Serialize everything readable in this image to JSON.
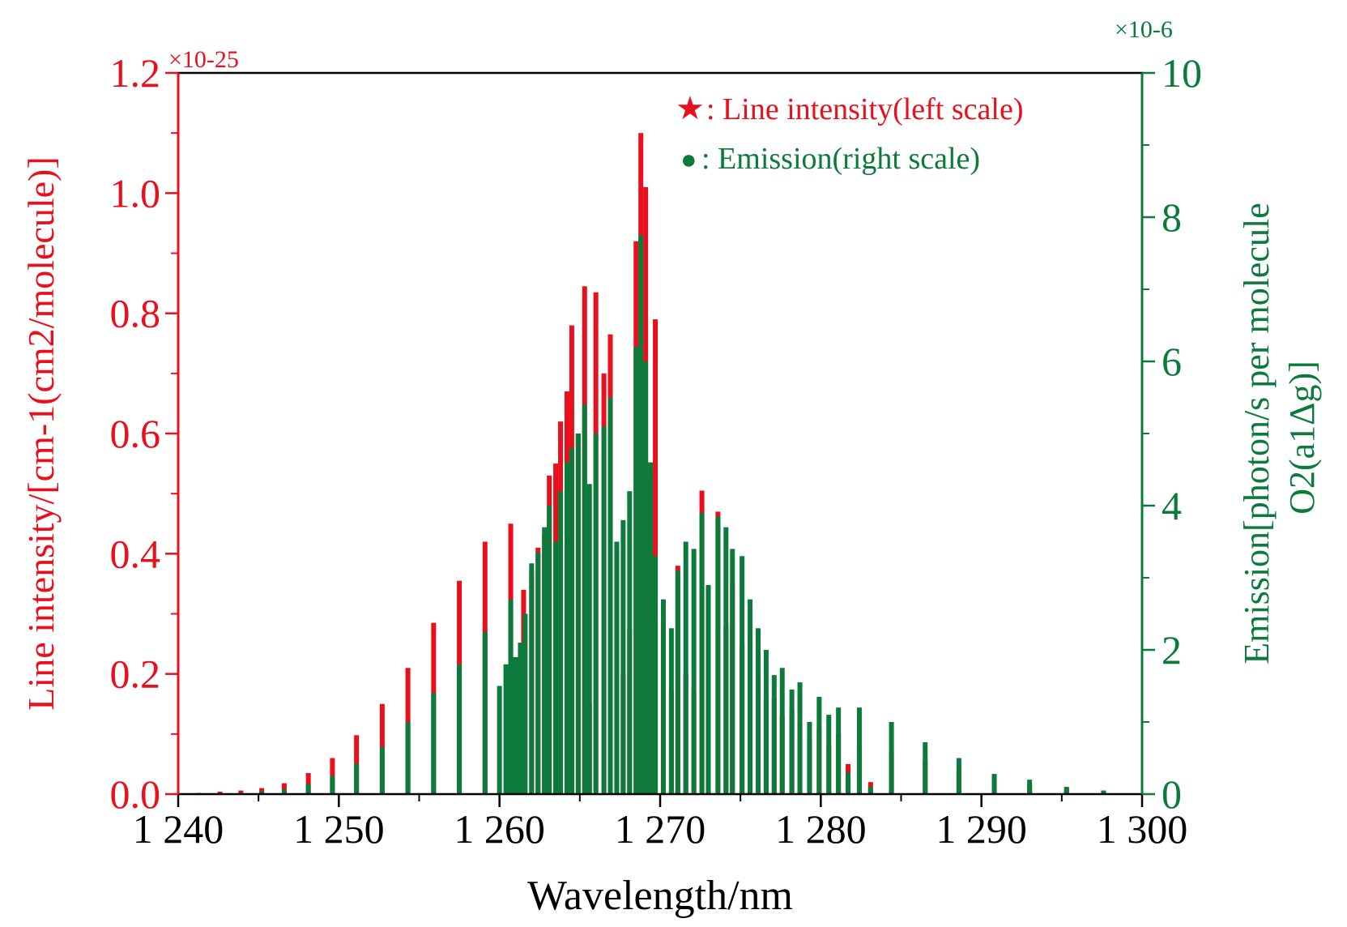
{
  "chart_data": {
    "type": "bar",
    "xlabel": "Wavelength/nm",
    "ylabel_left": "Line intensity/[cm-1(cm2/molecule)]",
    "ylabel_right_line1": "Emission[photon/s per molecule",
    "ylabel_right_line2": "O2(a1Δg)]",
    "left_multiplier": "×10-25",
    "right_multiplier": "×10-6",
    "xlim": [
      1240,
      1300
    ],
    "ylim_left": [
      0,
      1.2
    ],
    "ylim_right": [
      0,
      10
    ],
    "x_ticks": [
      1240,
      1250,
      1260,
      1270,
      1280,
      1290,
      1300
    ],
    "x_tick_labels": [
      "1 240",
      "1 250",
      "1 260",
      "1 270",
      "1 280",
      "1 290",
      "1 300"
    ],
    "y_left_ticks": [
      0.0,
      0.2,
      0.4,
      0.6,
      0.8,
      1.0,
      1.2
    ],
    "y_left_tick_labels": [
      "0.0",
      "0.2",
      "0.4",
      "0.6",
      "0.8",
      "1.0",
      "1.2"
    ],
    "y_right_ticks": [
      0,
      2,
      4,
      6,
      8,
      10
    ],
    "y_right_tick_labels": [
      "0",
      "2",
      "4",
      "6",
      "8",
      "10"
    ],
    "legend": {
      "position": "top-right",
      "items": [
        {
          "marker": "★",
          "label": ": Line intensity(left scale)",
          "color": "#e8101c"
        },
        {
          "marker": "●",
          "label": ": Emission(right scale)",
          "color": "#0b7a3b"
        }
      ]
    },
    "colors": {
      "line_intensity": "#e8101c",
      "emission": "#0b7a3b",
      "axis": "#000000"
    },
    "series": [
      {
        "name": "Line intensity(left scale)",
        "axis": "left",
        "x": [
          1241.3,
          1242.6,
          1243.9,
          1245.2,
          1246.6,
          1248.1,
          1249.6,
          1251.1,
          1252.7,
          1254.3,
          1255.9,
          1257.5,
          1259.1,
          1260.7,
          1261.5,
          1262.0,
          1262.4,
          1262.8,
          1263.1,
          1263.5,
          1263.8,
          1264.2,
          1264.5,
          1264.9,
          1265.3,
          1265.6,
          1266.0,
          1266.5,
          1266.9,
          1267.3,
          1267.7,
          1268.1,
          1268.5,
          1268.8,
          1269.1,
          1269.4,
          1269.7,
          1270.2,
          1270.7,
          1271.1,
          1271.6,
          1272.1,
          1272.6,
          1273.0,
          1273.6,
          1274.1,
          1274.5,
          1275.1,
          1275.6,
          1276.1,
          1276.6,
          1277.1,
          1277.6,
          1278.2,
          1278.7,
          1279.3,
          1279.9,
          1280.5,
          1281.1,
          1281.7,
          1282.4,
          1283.1,
          1284.4,
          1286.5,
          1288.6,
          1290.8,
          1293.0,
          1295.3,
          1297.6
        ],
        "values": [
          0.002,
          0.004,
          0.006,
          0.01,
          0.018,
          0.035,
          0.06,
          0.098,
          0.15,
          0.21,
          0.285,
          0.355,
          0.42,
          0.45,
          0.34,
          0.37,
          0.41,
          0.43,
          0.53,
          0.55,
          0.62,
          0.67,
          0.78,
          0.6,
          0.845,
          0.15,
          0.835,
          0.7,
          0.765,
          0.41,
          0.2,
          0.275,
          0.92,
          1.1,
          1.01,
          0.53,
          0.79,
          0.29,
          0.17,
          0.38,
          0.2,
          0.17,
          0.505,
          0.25,
          0.47,
          0.28,
          0.35,
          0.25,
          0.26,
          0.2,
          0.16,
          0.16,
          0.13,
          0.14,
          0.12,
          0.09,
          0.11,
          0.08,
          0.1,
          0.05,
          0.08,
          0.02,
          0.07,
          0.055,
          0.04,
          0.02,
          0.015,
          0.01,
          0.005
        ]
      },
      {
        "name": "Emission(right scale)",
        "axis": "right",
        "x": [
          1241.3,
          1242.6,
          1243.9,
          1245.2,
          1246.6,
          1248.1,
          1249.6,
          1251.1,
          1252.7,
          1254.3,
          1255.9,
          1257.5,
          1259.1,
          1260.0,
          1260.4,
          1260.7,
          1261.0,
          1261.3,
          1261.6,
          1262.0,
          1262.4,
          1262.8,
          1263.1,
          1263.5,
          1263.8,
          1264.2,
          1264.5,
          1264.9,
          1265.3,
          1265.6,
          1266.0,
          1266.5,
          1266.9,
          1267.3,
          1267.7,
          1268.1,
          1268.5,
          1268.8,
          1269.1,
          1269.4,
          1269.7,
          1270.2,
          1270.7,
          1271.1,
          1271.6,
          1272.1,
          1272.6,
          1273.0,
          1273.6,
          1274.1,
          1274.5,
          1275.1,
          1275.6,
          1276.1,
          1276.6,
          1277.1,
          1277.6,
          1278.2,
          1278.7,
          1279.3,
          1279.9,
          1280.5,
          1281.1,
          1281.7,
          1282.4,
          1283.1,
          1284.4,
          1286.5,
          1288.6,
          1290.8,
          1293.0,
          1295.3,
          1297.6
        ],
        "values": [
          0.0,
          0.01,
          0.02,
          0.04,
          0.07,
          0.14,
          0.25,
          0.42,
          0.65,
          1.0,
          1.4,
          1.8,
          2.25,
          1.5,
          1.8,
          2.7,
          1.9,
          2.1,
          2.5,
          3.2,
          3.35,
          3.7,
          4.0,
          3.5,
          4.2,
          4.6,
          4.8,
          5.0,
          5.4,
          4.3,
          5.0,
          5.1,
          5.5,
          3.5,
          3.8,
          4.2,
          6.2,
          7.75,
          6.0,
          4.6,
          3.3,
          2.7,
          2.3,
          3.1,
          3.5,
          3.4,
          3.9,
          2.9,
          3.85,
          3.7,
          3.4,
          3.3,
          2.7,
          2.3,
          2.0,
          1.65,
          1.75,
          1.45,
          1.55,
          1.0,
          1.35,
          1.1,
          1.2,
          0.3,
          1.2,
          0.1,
          1.0,
          0.72,
          0.5,
          0.28,
          0.2,
          0.1,
          0.05
        ]
      }
    ]
  }
}
